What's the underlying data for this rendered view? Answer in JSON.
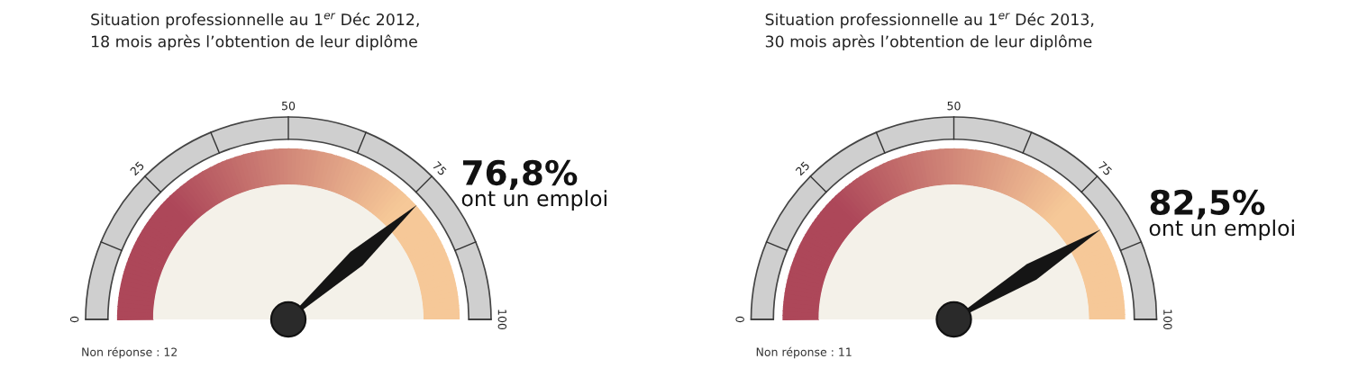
{
  "chart_data": [
    {
      "type": "other",
      "title": "Situation professionnelle au 1$^{er}$ Déc 2012,\n18 mois après l’obtention de leur diplôme",
      "values": [
        76.8
      ],
      "value_labels": [
        "76,8%"
      ],
      "annotations": [
        "0",
        "25",
        "50",
        "75",
        "100",
        "ont un emploi",
        "Non réponse : 12"
      ]
    },
    {
      "type": "other",
      "title": "Situation professionnelle au 1$^{er}$ Déc 2013,\n30 mois après l’obtention de leur diplôme",
      "values": [
        82.5
      ],
      "value_labels": [
        "82,5%"
      ],
      "annotations": [
        "0",
        "25",
        "50",
        "75",
        "100",
        "ont un emploi",
        "Non réponse : 11"
      ]
    }
  ]
}
